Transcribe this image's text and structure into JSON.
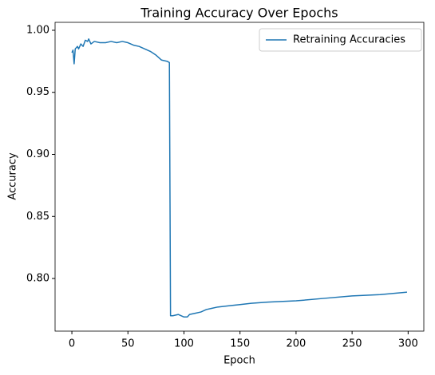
{
  "chart_data": {
    "type": "line",
    "title": "Training Accuracy Over Epochs",
    "x_label": "Epoch",
    "y_label": "Accuracy",
    "x": [
      0,
      1,
      2,
      3,
      5,
      6,
      8,
      10,
      12,
      14,
      15,
      17,
      20,
      25,
      30,
      35,
      40,
      45,
      50,
      55,
      60,
      65,
      70,
      75,
      80,
      85,
      87,
      88,
      90,
      95,
      100,
      103,
      105,
      110,
      115,
      120,
      125,
      130,
      140,
      150,
      160,
      175,
      200,
      225,
      250,
      275,
      299
    ],
    "series": [
      {
        "name": "Retraining Accuracies",
        "color": "#1f77b4",
        "values": [
          0.982,
          0.984,
          0.973,
          0.985,
          0.987,
          0.985,
          0.989,
          0.987,
          0.992,
          0.991,
          0.993,
          0.989,
          0.991,
          0.99,
          0.99,
          0.991,
          0.99,
          0.991,
          0.99,
          0.988,
          0.987,
          0.985,
          0.983,
          0.98,
          0.976,
          0.975,
          0.974,
          0.77,
          0.77,
          0.771,
          0.769,
          0.769,
          0.771,
          0.772,
          0.773,
          0.775,
          0.776,
          0.777,
          0.778,
          0.779,
          0.78,
          0.781,
          0.782,
          0.784,
          0.786,
          0.787,
          0.789
        ]
      }
    ],
    "xlim": [
      -15,
      314
    ],
    "ylim": [
      0.7576,
      1.0064
    ],
    "xticks": [
      0,
      50,
      100,
      150,
      200,
      250,
      300
    ],
    "yticks": [
      {
        "value": 0.8,
        "label": "0.80"
      },
      {
        "value": 0.85,
        "label": "0.85"
      },
      {
        "value": 0.9,
        "label": "0.90"
      },
      {
        "value": 0.95,
        "label": "0.95"
      },
      {
        "value": 1.0,
        "label": "1.00"
      }
    ],
    "legend": "upper right"
  }
}
